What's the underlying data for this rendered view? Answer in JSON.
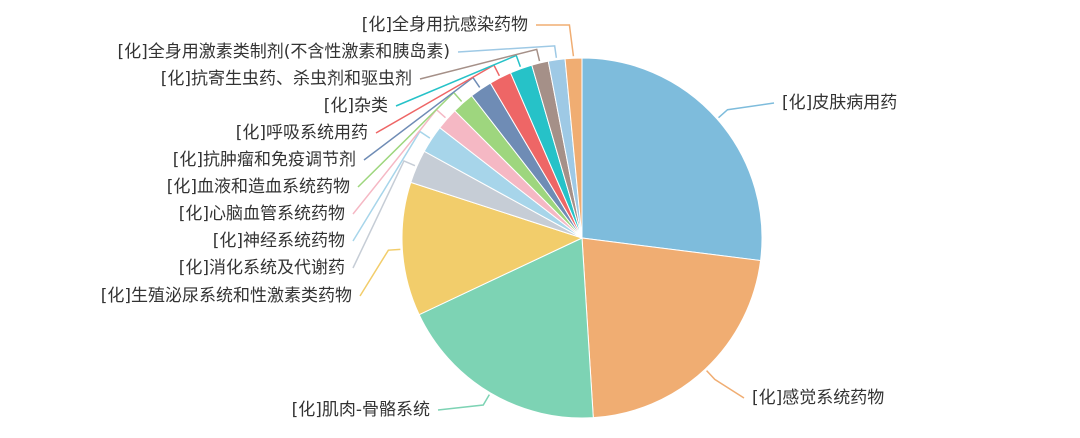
{
  "chart_data": {
    "type": "pie",
    "categories": [
      "[化]皮肤病用药",
      "[化]感觉系统药物",
      "[化]肌肉-骨骼系统",
      "[化]生殖泌尿系统和性激素类药物",
      "[化]消化系统及代谢药",
      "[化]神经系统药物",
      "[化]心脑血管系统药物",
      "[化]血液和造血系统药物",
      "[化]抗肿瘤和免疫调节剂",
      "[化]呼吸系统用药",
      "[化]杂类",
      "[化]抗寄生虫药、杀虫剂和驱虫剂",
      "[化]全身用激素类制剂(不含性激素和胰岛素)",
      "[化]全身用抗感染药物"
    ],
    "values": [
      27,
      22,
      19,
      12,
      3,
      2.5,
      2,
      2,
      2,
      2,
      2,
      1.5,
      1.5,
      1.5
    ],
    "colors": [
      "#7ebcdc",
      "#f0ad72",
      "#7dd3b4",
      "#f2cd6b",
      "#c6cdd6",
      "#a7d5ea",
      "#f5b8c4",
      "#9ed67e",
      "#6f8cb5",
      "#ee6666",
      "#26c2c8",
      "#a59088",
      "#9ec9e5",
      "#f0ad72"
    ]
  }
}
